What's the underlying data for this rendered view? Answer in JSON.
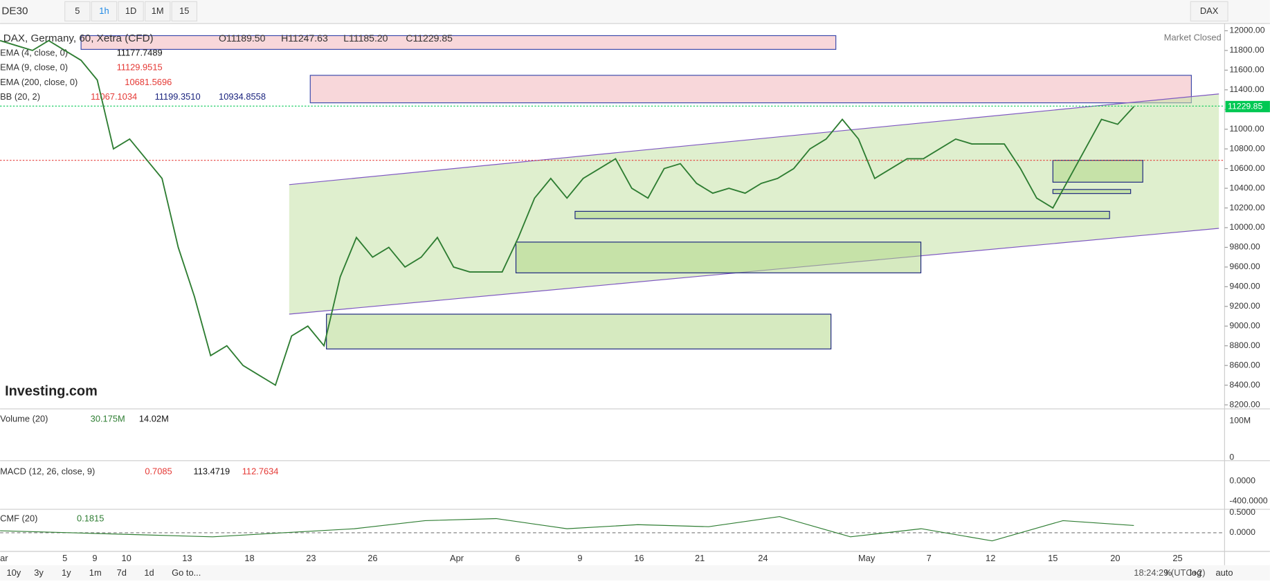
{
  "toolbar": {
    "symbol": "DE30",
    "intervals": [
      "5",
      "1h",
      "1D",
      "1M",
      "15"
    ],
    "instrument": "DAX"
  },
  "legend": {
    "title": "DAX, Germany, 60, Xetra (CFD)",
    "ohlc": [
      "O11189.50",
      "H11247.63",
      "L11185.20",
      "C11229.85"
    ],
    "indicators": [
      {
        "name": "EMA (4, close, 0)",
        "values": [
          "11177.7489"
        ]
      },
      {
        "name": "EMA (9, close, 0)",
        "values": [
          "11129.9515"
        ]
      },
      {
        "name": "EMA (200, close, 0)",
        "values": [
          "10681.5696"
        ]
      },
      {
        "name": "BB (20, 2)",
        "values": [
          "11067.1034",
          "11199.3510",
          "10934.8558"
        ]
      }
    ]
  },
  "status": "Market Closed",
  "logo": "Investing.com",
  "chart_data": {
    "type": "line",
    "series": [
      {
        "name": "DAX",
        "color": "#2e7d32",
        "values": [
          11900,
          11850,
          11800,
          11900,
          11800,
          11700,
          11500,
          10800,
          10900,
          10700,
          10500,
          9800,
          9300,
          8700,
          8800,
          8600,
          8500,
          8400,
          8900,
          9000,
          8800,
          9500,
          9900,
          9700,
          9800,
          9600,
          9700,
          9900,
          9600,
          9550,
          9550,
          9550,
          9900,
          10300,
          10500,
          10300,
          10500,
          10600,
          10700,
          10400,
          10300,
          10600,
          10650,
          10450,
          10350,
          10400,
          10350,
          10450,
          10500,
          10600,
          10800,
          10900,
          11100,
          10900,
          10500,
          10600,
          10700,
          10700,
          10800,
          10900,
          10850,
          10850,
          10850,
          10600,
          10300,
          10200,
          10500,
          10800,
          11100,
          11050,
          11230
        ]
      }
    ],
    "ylim": [
      8200,
      12000
    ],
    "yticks": [
      {
        "value": 12000,
        "label": "12000.00"
      },
      {
        "value": 11800,
        "label": "11800.00"
      },
      {
        "value": 11600,
        "label": "11600.00"
      },
      {
        "value": 11400,
        "label": "11400.00"
      },
      {
        "value": 11200,
        "label": "11200.00"
      },
      {
        "value": 11000,
        "label": "11000.00"
      },
      {
        "value": 10800,
        "label": "10800.00"
      },
      {
        "value": 10600,
        "label": "10600.00"
      },
      {
        "value": 10400,
        "label": "10400.00"
      },
      {
        "value": 10200,
        "label": "10200.00"
      },
      {
        "value": 10000,
        "label": "10000.00"
      },
      {
        "value": 9800,
        "label": "9800.00"
      },
      {
        "value": 9600,
        "label": "9600.00"
      },
      {
        "value": 9400,
        "label": "9400.00"
      },
      {
        "value": 9200,
        "label": "9200.00"
      },
      {
        "value": 9000,
        "label": "9000.00"
      },
      {
        "value": 8800,
        "label": "8800.00"
      },
      {
        "value": 8600,
        "label": "8600.00"
      },
      {
        "value": 8400,
        "label": "8400.00"
      },
      {
        "value": 8200,
        "label": "8200.00"
      }
    ],
    "last_price": {
      "value": 11229.85,
      "label": "11229.85"
    },
    "x_labels": [
      "ar",
      "5",
      "9",
      "10",
      "13",
      "18",
      "23",
      "26",
      "Apr",
      "6",
      "9",
      "16",
      "21",
      "24",
      "May",
      "7",
      "12",
      "15",
      "20",
      "25"
    ]
  },
  "volume": {
    "name": "Volume (20)",
    "values": [
      "30.175M",
      "14.02M"
    ],
    "ticks": [
      "100M",
      "0"
    ]
  },
  "macd": {
    "name": "MACD (12, 26, close, 9)",
    "values": [
      "0.7085",
      "113.4719",
      "112.7634"
    ],
    "ticks": [
      "0.0000",
      "-400.0000"
    ]
  },
  "cmf": {
    "name": "CMF (20)",
    "values": [
      "0.1815"
    ],
    "ticks": [
      "0.5000",
      "0.0000"
    ],
    "chart_data": {
      "type": "line",
      "color": "#2e7d32",
      "values": [
        0.05,
        0,
        -0.05,
        -0.1,
        0,
        0.1,
        0.3,
        0.35,
        0.1,
        0.2,
        0.15,
        0.4,
        -0.1,
        0.1,
        -0.2,
        0.3,
        0.18
      ],
      "ylim": [
        -0.5,
        0.5
      ]
    }
  },
  "footer": {
    "ranges": [
      "10y",
      "3y",
      "1y",
      "1m",
      "7d",
      "1d",
      "Go to..."
    ],
    "time": "18:24:29 (UTC+2)",
    "options": [
      "%",
      "log",
      "auto"
    ]
  }
}
